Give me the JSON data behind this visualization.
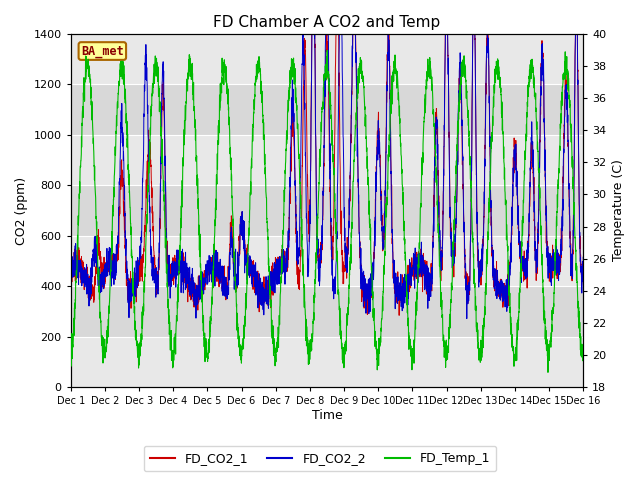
{
  "title": "FD Chamber A CO2 and Temp",
  "xlabel": "Time",
  "ylabel_left": "CO2 (ppm)",
  "ylabel_right": "Temperature (C)",
  "badge_text": "BA_met",
  "xlim_days": [
    0,
    15
  ],
  "ylim_co2": [
    0,
    1400
  ],
  "ylim_temp": [
    18,
    40
  ],
  "yticks_co2": [
    0,
    200,
    400,
    600,
    800,
    1000,
    1200,
    1400
  ],
  "yticks_temp_vals": [
    18,
    20,
    22,
    24,
    26,
    28,
    30,
    32,
    34,
    36,
    38,
    40
  ],
  "yticks_temp_labels": [
    "18",
    "20",
    "22",
    "24",
    "26",
    "28",
    "30",
    "32",
    "34",
    "36",
    "38",
    "40"
  ],
  "xtick_positions": [
    0,
    1,
    2,
    3,
    4,
    5,
    6,
    7,
    8,
    9,
    10,
    11,
    12,
    13,
    14,
    15
  ],
  "xtick_labels": [
    "Dec 1",
    "Dec 2",
    "Dec 3",
    "Dec 4",
    "Dec 5",
    "Dec 6",
    "Dec 7",
    "Dec 8",
    "Dec 9",
    "Dec 10",
    "Dec 11",
    "Dec 12",
    "Dec 13",
    "Dec 14",
    "Dec 15",
    "Dec 16"
  ],
  "legend_labels": [
    "FD_CO2_1",
    "FD_CO2_2",
    "FD_Temp_1"
  ],
  "legend_colors": [
    "#cc0000",
    "#0000cc",
    "#00bb00"
  ],
  "color_co2_1": "#cc0000",
  "color_co2_2": "#0000cc",
  "color_temp": "#00bb00",
  "background_color": "#ffffff",
  "plot_bg_color": "#d8d8d8",
  "band_color_light": "#e8e8e8",
  "grid_color": "#ffffff",
  "badge_bg": "#ffff99",
  "badge_edge": "#aa6600",
  "badge_text_color": "#880000",
  "figsize": [
    6.4,
    4.8
  ],
  "dpi": 100
}
